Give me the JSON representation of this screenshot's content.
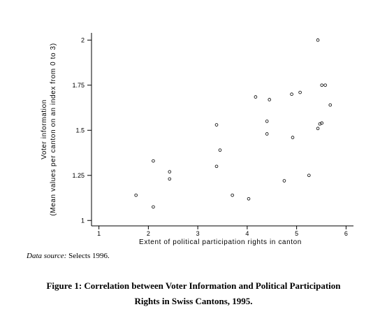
{
  "chart_data": {
    "type": "scatter",
    "xlabel": "Extent of political participation rights in canton",
    "ylabel": "Voter information",
    "ylabel2": "(Mean values per canton on an index from 0 to 3)",
    "xlim": [
      0.85,
      6.15
    ],
    "ylim": [
      0.97,
      2.04
    ],
    "xticks": [
      1,
      2,
      3,
      4,
      5,
      6
    ],
    "yticks": [
      1,
      1.25,
      1.5,
      1.75,
      2
    ],
    "ytick_labels": [
      "1",
      "1.25",
      "1.5",
      "1.75",
      "2"
    ],
    "grid": false,
    "points": [
      {
        "x": 1.75,
        "y": 1.14
      },
      {
        "x": 2.1,
        "y": 1.075
      },
      {
        "x": 2.1,
        "y": 1.33
      },
      {
        "x": 2.43,
        "y": 1.27
      },
      {
        "x": 2.43,
        "y": 1.23
      },
      {
        "x": 3.38,
        "y": 1.53
      },
      {
        "x": 3.38,
        "y": 1.3
      },
      {
        "x": 3.45,
        "y": 1.39
      },
      {
        "x": 3.7,
        "y": 1.14
      },
      {
        "x": 4.03,
        "y": 1.12
      },
      {
        "x": 4.17,
        "y": 1.685
      },
      {
        "x": 4.4,
        "y": 1.55
      },
      {
        "x": 4.4,
        "y": 1.48
      },
      {
        "x": 4.45,
        "y": 1.67
      },
      {
        "x": 4.75,
        "y": 1.22
      },
      {
        "x": 4.9,
        "y": 1.7
      },
      {
        "x": 4.92,
        "y": 1.46
      },
      {
        "x": 5.07,
        "y": 1.71
      },
      {
        "x": 5.25,
        "y": 1.25
      },
      {
        "x": 5.43,
        "y": 2.0
      },
      {
        "x": 5.43,
        "y": 1.51
      },
      {
        "x": 5.47,
        "y": 1.535
      },
      {
        "x": 5.51,
        "y": 1.54
      },
      {
        "x": 5.51,
        "y": 1.75
      },
      {
        "x": 5.58,
        "y": 1.75
      },
      {
        "x": 5.68,
        "y": 1.64
      }
    ]
  },
  "source": {
    "label": "Data source:",
    "text": " Selects 1996."
  },
  "caption": {
    "line1": "Figure 1: Correlation between Voter Information and Political Participation",
    "line2": "Rights in Swiss Cantons, 1995."
  }
}
